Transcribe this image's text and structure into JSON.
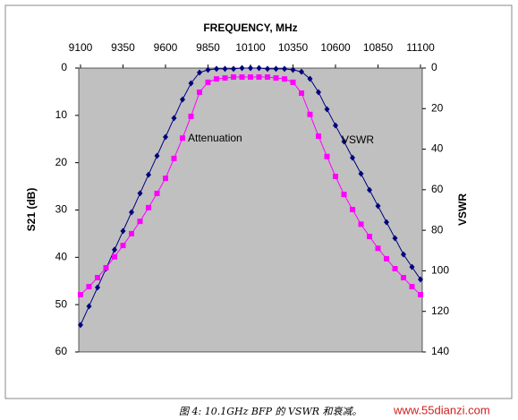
{
  "chart_data": {
    "type": "line",
    "title": "FREQUENCY, MHz",
    "y_label": "S21 (dB)",
    "y2_label": "VSWR",
    "x": [
      9100,
      9150,
      9200,
      9250,
      9300,
      9350,
      9400,
      9450,
      9500,
      9550,
      9600,
      9650,
      9700,
      9750,
      9800,
      9850,
      9900,
      9950,
      10000,
      10050,
      10100,
      10150,
      10200,
      10250,
      10300,
      10350,
      10400,
      10450,
      10500,
      10550,
      10600,
      10650,
      10700,
      10750,
      10800,
      10850,
      10900,
      10950,
      11000,
      11050,
      11100
    ],
    "series": [
      {
        "name": "VSWR",
        "color": "#000080",
        "marker": "diamond",
        "axis": "y2",
        "values": [
          126.7,
          117.5,
          108.2,
          98.9,
          89.6,
          80.4,
          71.1,
          61.8,
          52.6,
          43.3,
          34.0,
          24.7,
          15.5,
          7.5,
          2.2,
          0.9,
          0.4,
          0.4,
          0.4,
          0,
          0,
          0,
          0.4,
          0.4,
          0.4,
          0.9,
          1.8,
          5.3,
          11.9,
          20.3,
          28.3,
          36.2,
          44.2,
          52.1,
          60.1,
          68.0,
          76.0,
          83.9,
          91.9,
          98.1,
          104.2
        ]
      },
      {
        "name": "Attenuation",
        "color": "#ff00ff",
        "marker": "square",
        "axis": "y",
        "values": [
          47.9,
          46.2,
          44.3,
          42.2,
          39.9,
          37.5,
          35.0,
          32.4,
          29.5,
          26.5,
          23.3,
          19.1,
          14.8,
          10.2,
          5.1,
          3.0,
          2.3,
          2.1,
          1.9,
          1.9,
          1.9,
          1.9,
          1.9,
          2.1,
          2.3,
          3.0,
          5.3,
          9.8,
          14.4,
          18.7,
          22.9,
          26.7,
          29.9,
          33.0,
          35.6,
          38.1,
          40.3,
          42.4,
          44.3,
          46.2,
          47.9
        ]
      }
    ],
    "xlim": [
      9100,
      11100
    ],
    "xticks": [
      9100,
      9350,
      9600,
      9850,
      10100,
      10350,
      10600,
      10850,
      11100
    ],
    "ylim": [
      0,
      60
    ],
    "yticks": [
      0,
      10,
      20,
      30,
      40,
      50,
      60
    ],
    "y_reversed": true,
    "y2lim": [
      0,
      140
    ],
    "y2ticks": [
      0,
      20,
      40,
      60,
      80,
      100,
      120,
      140
    ],
    "y2_reversed": true,
    "x_axis_position": "top",
    "plot_background": "#c0c0c0",
    "grid": false,
    "caption": "图 4: 10.1GHz BFP 的 VSWR 和衰减。",
    "watermark": "www.55dianzi.com"
  }
}
